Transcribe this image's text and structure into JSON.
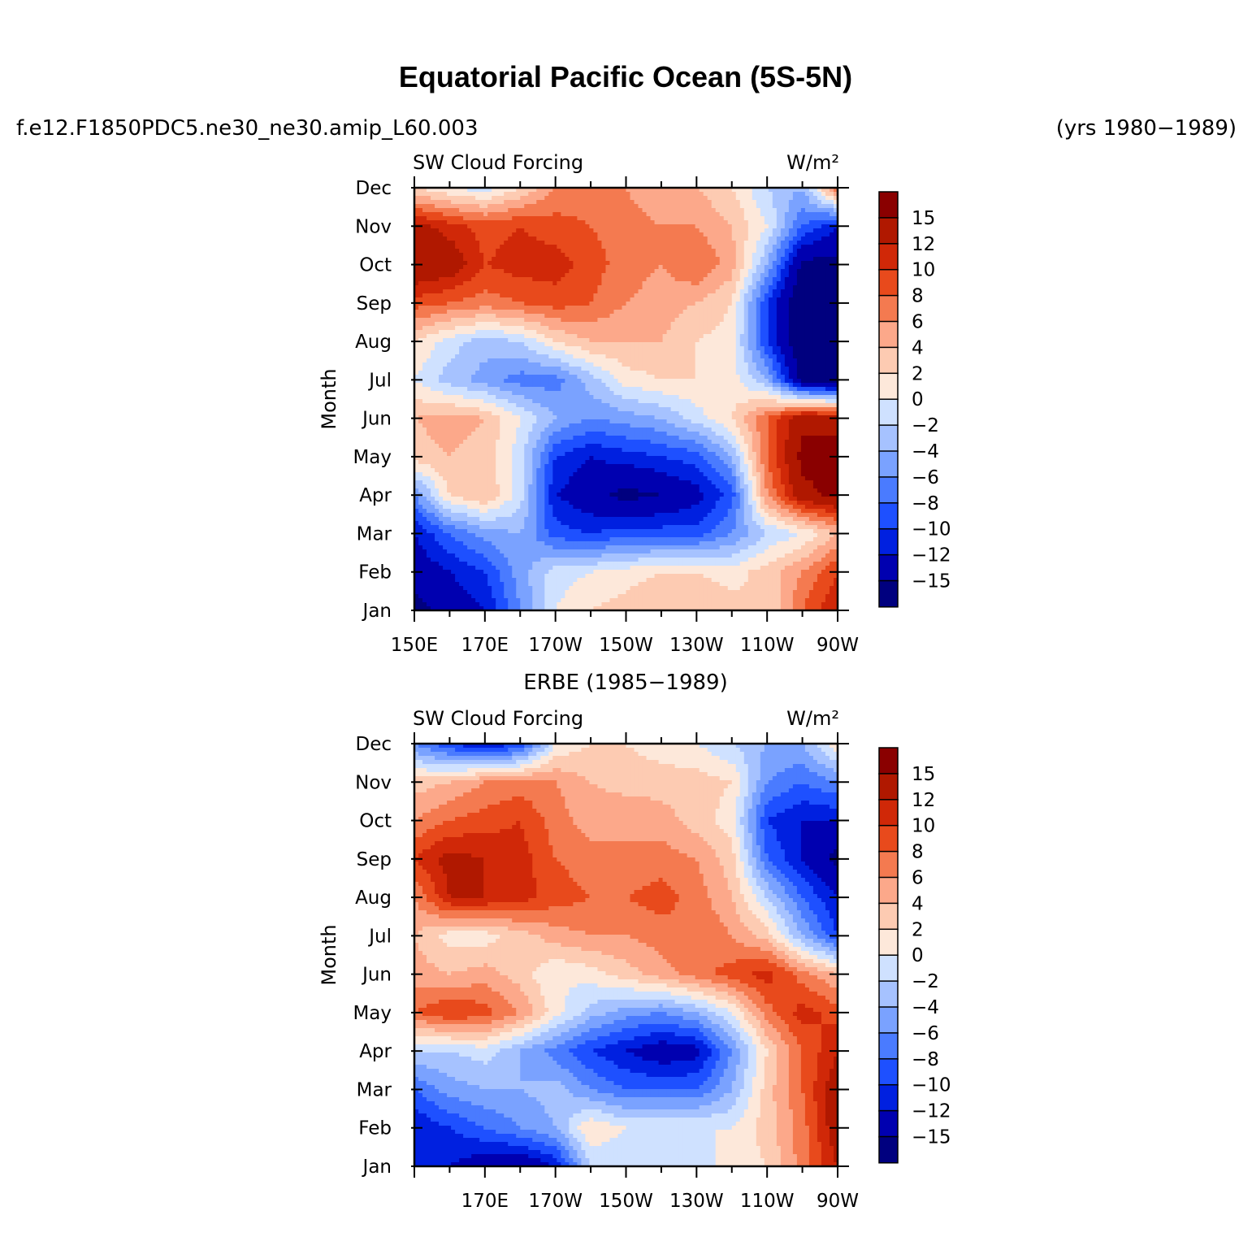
{
  "figure": {
    "title": "Equatorial Pacific Ocean (5S-5N)",
    "case_name": "f.e12.F1850PDC5.ne30_ne30.amip_L60.003",
    "years": "(yrs 1980−1989)",
    "obs_title": "ERBE (1985−1989)"
  },
  "chart_data": [
    {
      "type": "heatmap",
      "panel": "model",
      "variable_label": "SW Cloud Forcing",
      "units_label": "W/m²",
      "ylabel": "Month",
      "x_ticks": [
        "150E",
        "170E",
        "170W",
        "150W",
        "130W",
        "110W",
        "90W"
      ],
      "x_tick_values": [
        150,
        170,
        190,
        210,
        230,
        250,
        270
      ],
      "x_range": [
        150,
        270
      ],
      "y_ticks": [
        "Jan",
        "Feb",
        "Mar",
        "Apr",
        "May",
        "Jun",
        "Jul",
        "Aug",
        "Sep",
        "Oct",
        "Nov",
        "Dec"
      ],
      "colorbar_labels": [
        "15",
        "12",
        "10",
        "8",
        "6",
        "4",
        "2",
        "0",
        "−2",
        "−4",
        "−6",
        "−8",
        "−10",
        "−12",
        "−15"
      ],
      "x_grid": [
        150,
        160,
        170,
        180,
        190,
        200,
        210,
        220,
        230,
        240,
        250,
        260,
        270
      ],
      "values": [
        [
          -16,
          -14,
          -12,
          -6,
          0,
          2,
          3,
          4,
          4,
          3,
          2,
          8,
          12
        ],
        [
          -14,
          -12,
          -10,
          -5,
          -1,
          0,
          1,
          2,
          2,
          1,
          3,
          6,
          10
        ],
        [
          -12,
          -8,
          -5,
          -4,
          -9,
          -10,
          -9,
          -9,
          -9,
          -6,
          -2,
          0,
          4
        ],
        [
          -6,
          2,
          4,
          -1,
          -12,
          -14,
          -16,
          -15,
          -13,
          -9,
          6,
          14,
          16
        ],
        [
          3,
          4,
          3,
          -1,
          -10,
          -12,
          -11,
          -10,
          -9,
          -4,
          8,
          16,
          16
        ],
        [
          4,
          5,
          4,
          0,
          -4,
          -6,
          -5,
          -4,
          -1,
          2,
          8,
          14,
          14
        ],
        [
          0,
          -3,
          -5,
          -7,
          -7,
          -3,
          1,
          2,
          2,
          1,
          -4,
          -16,
          -18
        ],
        [
          2,
          -1,
          -3,
          -2,
          2,
          4,
          4,
          4,
          2,
          1,
          -10,
          -18,
          -18
        ],
        [
          9,
          8,
          7,
          8,
          9,
          8,
          6,
          5,
          4,
          2,
          -10,
          -18,
          -18
        ],
        [
          15,
          14,
          10,
          11,
          11,
          9,
          7,
          6,
          8,
          5,
          -4,
          -16,
          -16
        ],
        [
          13,
          11,
          9,
          10,
          9,
          8,
          7,
          6,
          6,
          4,
          0,
          -8,
          -12
        ],
        [
          2,
          0,
          -1,
          2,
          6,
          7,
          6,
          4,
          4,
          2,
          -2,
          -4,
          8
        ]
      ]
    },
    {
      "type": "heatmap",
      "panel": "observations",
      "variable_label": "SW Cloud Forcing",
      "units_label": "W/m²",
      "ylabel": "Month",
      "x_ticks": [
        "170E",
        "170W",
        "150W",
        "130W",
        "110W",
        "90W"
      ],
      "x_tick_values": [
        170,
        190,
        210,
        230,
        250,
        270
      ],
      "x_range": [
        150,
        270
      ],
      "y_ticks": [
        "Jan",
        "Feb",
        "Mar",
        "Apr",
        "May",
        "Jun",
        "Jul",
        "Aug",
        "Sep",
        "Oct",
        "Nov",
        "Dec"
      ],
      "colorbar_labels": [
        "15",
        "12",
        "10",
        "8",
        "6",
        "4",
        "2",
        "0",
        "−2",
        "−4",
        "−6",
        "−8",
        "−10",
        "−12",
        "−15"
      ],
      "x_grid": [
        150,
        160,
        170,
        180,
        190,
        200,
        210,
        220,
        230,
        240,
        250,
        260,
        270
      ],
      "values": [
        [
          -10,
          -12,
          -14,
          -15,
          -12,
          -2,
          -2,
          0,
          -1,
          1,
          2,
          7,
          12
        ],
        [
          -12,
          -10,
          -8,
          -6,
          -4,
          2,
          0,
          0,
          0,
          0,
          3,
          7,
          14
        ],
        [
          -8,
          -5,
          -4,
          -4,
          -3,
          -6,
          -8,
          -8,
          -8,
          -4,
          3,
          8,
          14
        ],
        [
          -2,
          -2,
          -1,
          -4,
          -7,
          -10,
          -12,
          -14,
          -13,
          -6,
          2,
          8,
          12
        ],
        [
          8,
          10,
          9,
          6,
          1,
          -3,
          -5,
          -6,
          -4,
          0,
          7,
          11,
          9
        ],
        [
          5,
          4,
          5,
          3,
          0,
          1,
          3,
          5,
          7,
          9,
          11,
          7,
          4
        ],
        [
          4,
          1,
          1,
          3,
          5,
          6,
          6,
          7,
          8,
          6,
          3,
          -4,
          -10
        ],
        [
          6,
          12,
          12,
          11,
          9,
          8,
          8,
          9,
          7,
          4,
          -2,
          -8,
          -12
        ],
        [
          10,
          13,
          12,
          11,
          8,
          7,
          6,
          7,
          6,
          3,
          -8,
          -12,
          -16
        ],
        [
          6,
          8,
          9,
          10,
          7,
          5,
          6,
          5,
          3,
          1,
          -10,
          -12,
          -12
        ],
        [
          3,
          4,
          6,
          7,
          6,
          4,
          3,
          3,
          3,
          2,
          -6,
          -8,
          -6
        ],
        [
          -6,
          -10,
          -12,
          -10,
          0,
          2,
          2,
          1,
          0,
          -2,
          -4,
          -4,
          2
        ]
      ]
    }
  ],
  "colors": {
    "level_colors": [
      "#00007f",
      "#0000b0",
      "#0020e0",
      "#1e50ff",
      "#4a7bff",
      "#7aa2ff",
      "#a6c2ff",
      "#cfe1ff",
      "#fde8da",
      "#fdcbb2",
      "#fca88a",
      "#f47a50",
      "#e84a1c",
      "#d02808",
      "#b01800",
      "#8a0000"
    ]
  }
}
